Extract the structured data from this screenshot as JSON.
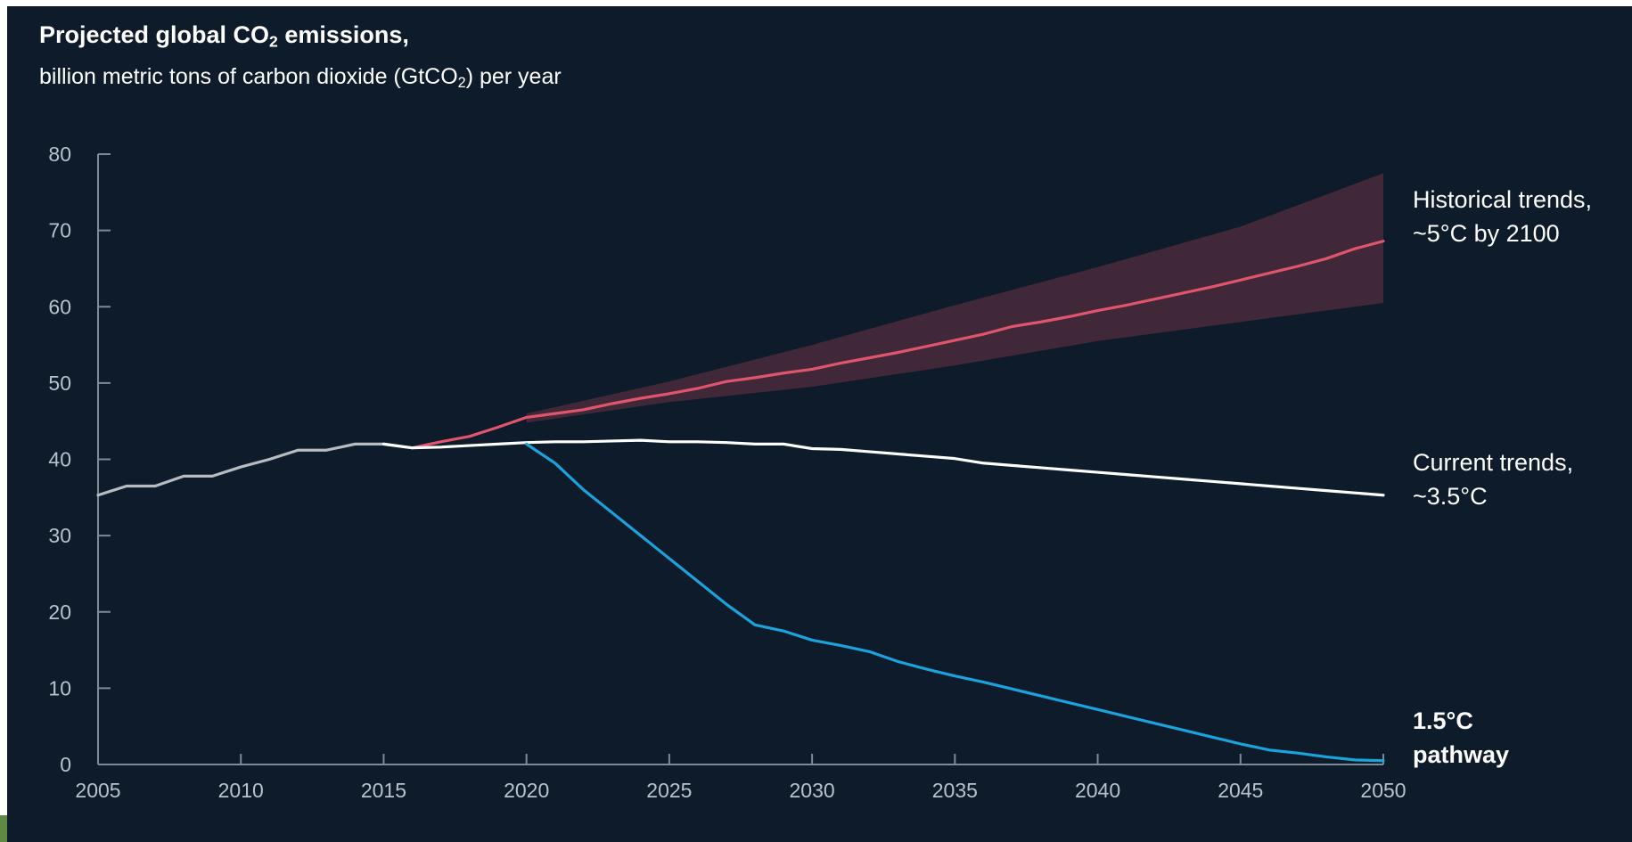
{
  "title": {
    "text": "Projected global CO",
    "sub": "2",
    "tail": " emissions,"
  },
  "subtitle": {
    "text": "billion metric tons of carbon dioxide (GtCO",
    "sub": "2",
    "tail": ") per year"
  },
  "colors": {
    "background": "#0d1b2a",
    "history": "#b8bcc1",
    "current": "#ffffff",
    "historical_trends": "#e0556b",
    "band": "#4a2a3b",
    "pathway": "#1aa3dc",
    "axis": "#7e8a96"
  },
  "chart_data": {
    "type": "line",
    "xlim": [
      2005,
      2050
    ],
    "ylim": [
      0,
      80
    ],
    "x_ticks": [
      2005,
      2010,
      2015,
      2020,
      2025,
      2030,
      2035,
      2040,
      2045,
      2050
    ],
    "y_ticks": [
      0,
      10,
      20,
      30,
      40,
      50,
      60,
      70,
      80
    ],
    "grid": false,
    "series": [
      {
        "key": "history",
        "x": [
          2005,
          2006,
          2007,
          2008,
          2009,
          2010,
          2011,
          2012,
          2013,
          2014,
          2015,
          2016
        ],
        "y": [
          35.3,
          36.5,
          36.5,
          37.8,
          37.8,
          39.0,
          40.0,
          41.2,
          41.2,
          42.0,
          42.0,
          41.5
        ]
      },
      {
        "key": "current",
        "name": "Current trends, ~3.5°C",
        "x": [
          2015,
          2016,
          2017,
          2018,
          2019,
          2020,
          2021,
          2022,
          2023,
          2024,
          2025,
          2026,
          2027,
          2028,
          2029,
          2030,
          2031,
          2032,
          2033,
          2034,
          2035,
          2036,
          2037,
          2038,
          2039,
          2040,
          2041,
          2042,
          2043,
          2044,
          2045,
          2046,
          2047,
          2048,
          2049,
          2050
        ],
        "y": [
          42.0,
          41.5,
          41.6,
          41.8,
          42.0,
          42.2,
          42.3,
          42.3,
          42.4,
          42.5,
          42.3,
          42.3,
          42.2,
          42.0,
          42.0,
          41.4,
          41.3,
          41.0,
          40.7,
          40.4,
          40.1,
          39.5,
          39.2,
          38.9,
          38.6,
          38.3,
          38.0,
          37.7,
          37.4,
          37.1,
          36.8,
          36.5,
          36.2,
          35.9,
          35.6,
          35.3
        ]
      },
      {
        "key": "historical_trends",
        "name": "Historical trends, ~5°C by 2100",
        "x": [
          2016,
          2017,
          2018,
          2019,
          2020,
          2021,
          2022,
          2023,
          2024,
          2025,
          2026,
          2027,
          2028,
          2029,
          2030,
          2031,
          2032,
          2033,
          2034,
          2035,
          2036,
          2037,
          2038,
          2039,
          2040,
          2041,
          2042,
          2043,
          2044,
          2045,
          2046,
          2047,
          2048,
          2049,
          2050
        ],
        "y": [
          41.5,
          42.3,
          43.0,
          44.2,
          45.5,
          46.0,
          46.5,
          47.3,
          48.0,
          48.6,
          49.3,
          50.2,
          50.7,
          51.3,
          51.8,
          52.6,
          53.3,
          54.0,
          54.8,
          55.6,
          56.4,
          57.4,
          58.0,
          58.7,
          59.5,
          60.2,
          61.0,
          61.8,
          62.6,
          63.5,
          64.4,
          65.3,
          66.3,
          67.6,
          68.6
        ]
      },
      {
        "key": "pathway",
        "name": "1.5°C pathway",
        "x": [
          2020,
          2021,
          2022,
          2023,
          2024,
          2025,
          2026,
          2027,
          2028,
          2029,
          2030,
          2031,
          2032,
          2033,
          2034,
          2035,
          2036,
          2037,
          2038,
          2039,
          2040,
          2041,
          2042,
          2043,
          2044,
          2045,
          2046,
          2047,
          2048,
          2049,
          2050
        ],
        "y": [
          42.0,
          39.5,
          36.0,
          33.0,
          30.0,
          27.0,
          24.0,
          21.0,
          18.3,
          17.5,
          16.3,
          15.6,
          14.8,
          13.5,
          12.5,
          11.6,
          10.8,
          9.9,
          9.0,
          8.1,
          7.2,
          6.3,
          5.4,
          4.5,
          3.6,
          2.7,
          1.9,
          1.5,
          1.0,
          0.6,
          0.5
        ]
      }
    ],
    "band": {
      "key": "historical_trends_range",
      "x": [
        2020,
        2025,
        2030,
        2035,
        2040,
        2045,
        2050
      ],
      "upper": [
        46.0,
        50.2,
        55.0,
        60.2,
        65.2,
        70.5,
        77.5
      ],
      "lower": [
        44.8,
        47.5,
        49.5,
        52.3,
        55.5,
        58.0,
        60.5
      ]
    },
    "labels": {
      "historical_trends": [
        "Historical trends,",
        "~5°C by 2100"
      ],
      "current": [
        "Current trends,",
        "~3.5°C"
      ],
      "pathway": [
        "1.5°C",
        "pathway"
      ]
    }
  }
}
